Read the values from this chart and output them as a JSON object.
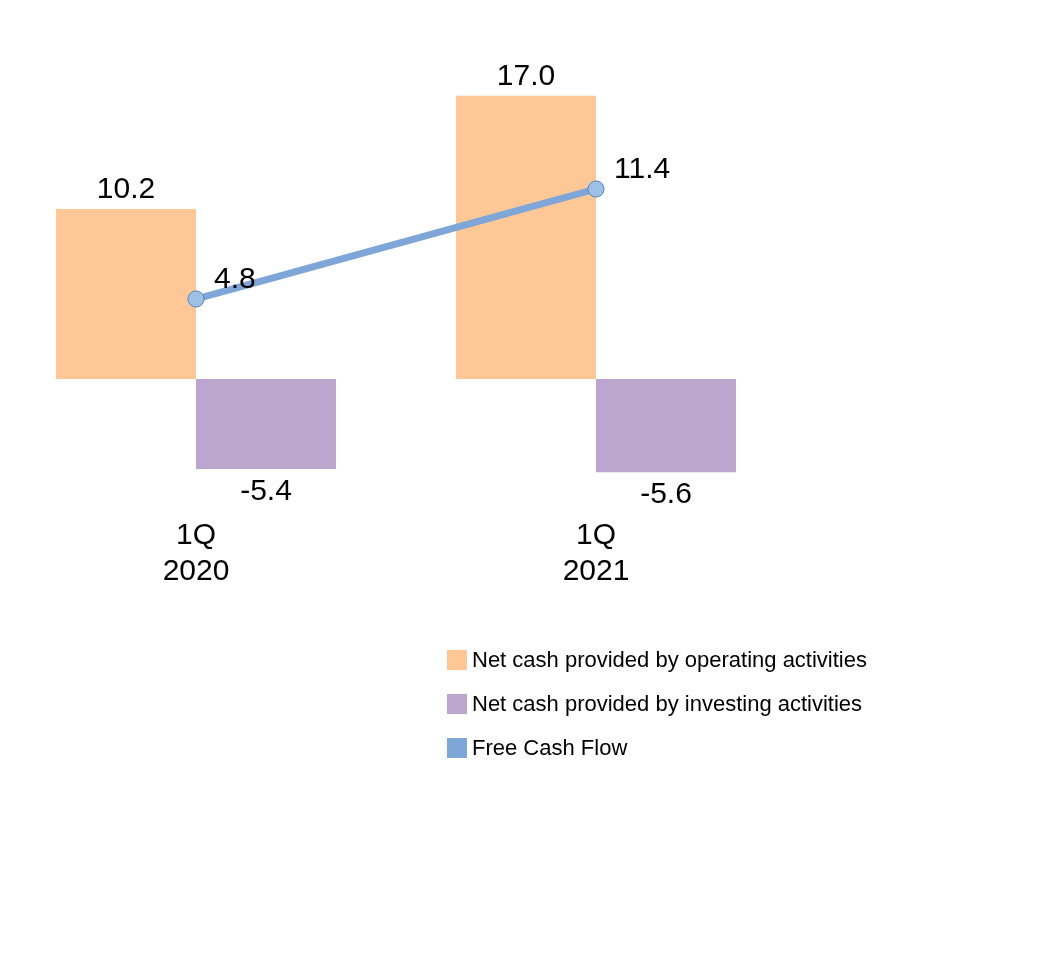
{
  "chart_data": {
    "type": "bar",
    "categories": [
      "1Q 2020",
      "1Q 2021"
    ],
    "series": [
      {
        "name": "Net cash provided by operating activities",
        "color": "#fdc896",
        "values": [
          10.2,
          17.0
        ],
        "value_labels": [
          "10.2",
          "17.0"
        ]
      },
      {
        "name": "Net cash provided by investing activities",
        "color": "#bca6cf",
        "values": [
          -5.4,
          -5.6
        ],
        "value_labels": [
          "-5.4",
          "-5.6"
        ]
      },
      {
        "name": "Free Cash Flow",
        "type": "line",
        "color": "#7ea6d8",
        "values": [
          4.8,
          11.4
        ],
        "value_labels": [
          "4.8",
          "11.4"
        ]
      }
    ],
    "marker": "circle",
    "legend": "bottom right"
  }
}
